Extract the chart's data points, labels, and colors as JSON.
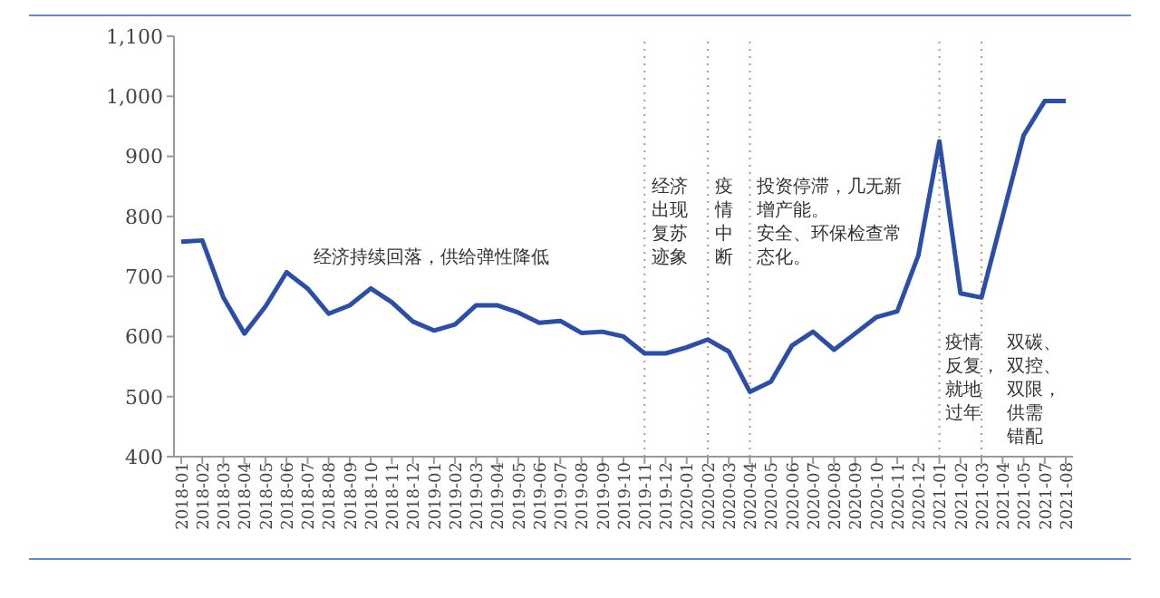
{
  "chart_data": {
    "type": "line",
    "categories": [
      "2018-01",
      "2018-02",
      "2018-03",
      "2018-04",
      "2018-05",
      "2018-06",
      "2018-07",
      "2018-08",
      "2018-09",
      "2018-10",
      "2018-11",
      "2018-12",
      "2019-01",
      "2019-02",
      "2019-03",
      "2019-04",
      "2019-05",
      "2019-06",
      "2019-07",
      "2019-08",
      "2019-09",
      "2019-10",
      "2019-11",
      "2019-12",
      "2020-01",
      "2020-02",
      "2020-03",
      "2020-04",
      "2020-05",
      "2020-06",
      "2020-07",
      "2020-08",
      "2020-09",
      "2020-10",
      "2020-11",
      "2020-12",
      "2021-01",
      "2021-02",
      "2021-03",
      "2021-04",
      "2021-05",
      "2021-07",
      "2021-08"
    ],
    "series": [
      {
        "color": "#2b4ea8",
        "values": [
          758,
          760,
          665,
          605,
          650,
          707,
          680,
          638,
          652,
          680,
          657,
          625,
          610,
          620,
          652,
          652,
          640,
          623,
          626,
          606,
          608,
          600,
          572,
          572,
          582,
          595,
          575,
          508,
          525,
          585,
          608,
          578,
          605,
          632,
          642,
          735,
          925,
          672,
          665,
          800,
          935,
          992,
          992
        ]
      }
    ],
    "ylim": [
      400,
      1100
    ],
    "yticks": [
      400,
      500,
      600,
      700,
      800,
      900,
      {
        "value": 1000,
        "label": "1,000"
      },
      {
        "value": 1100,
        "label": "1,100"
      }
    ],
    "grid": false,
    "legend": false,
    "marker": "none",
    "line_style": "solid",
    "ref_lines": [
      {
        "axis": "x",
        "value": "2019-11",
        "color": "#d08a8a",
        "line_style": "dotted"
      },
      {
        "axis": "x",
        "value": "2020-02",
        "color": "#d08a8a",
        "line_style": "dotted"
      },
      {
        "axis": "x",
        "value": "2020-04",
        "color": "#d08a8a",
        "line_style": "dotted"
      },
      {
        "axis": "x",
        "value": "2021-01",
        "color": "#d08a8a",
        "line_style": "dotted"
      },
      {
        "axis": "x",
        "value": "2021-03",
        "color": "#d08a8a",
        "line_style": "dotted"
      }
    ],
    "annotations": [
      "经济持续回落，供给弹性降低",
      {
        "text": "经济出现复苏迹象",
        "x": "2019-11",
        "y": 868
      },
      {
        "text": "疫情中断",
        "x": "2020-02",
        "y": 868
      },
      {
        "text": "投资停滞，几无新增产能。安全、环保检查常态化。",
        "x": "2020-04",
        "y": 868
      },
      {
        "text": "疫情反复，就地过年",
        "x": "2021-01",
        "y": 608
      },
      {
        "text": "双碳、双控、双限，供需错配",
        "x": "2021-03",
        "y": 608
      }
    ]
  }
}
